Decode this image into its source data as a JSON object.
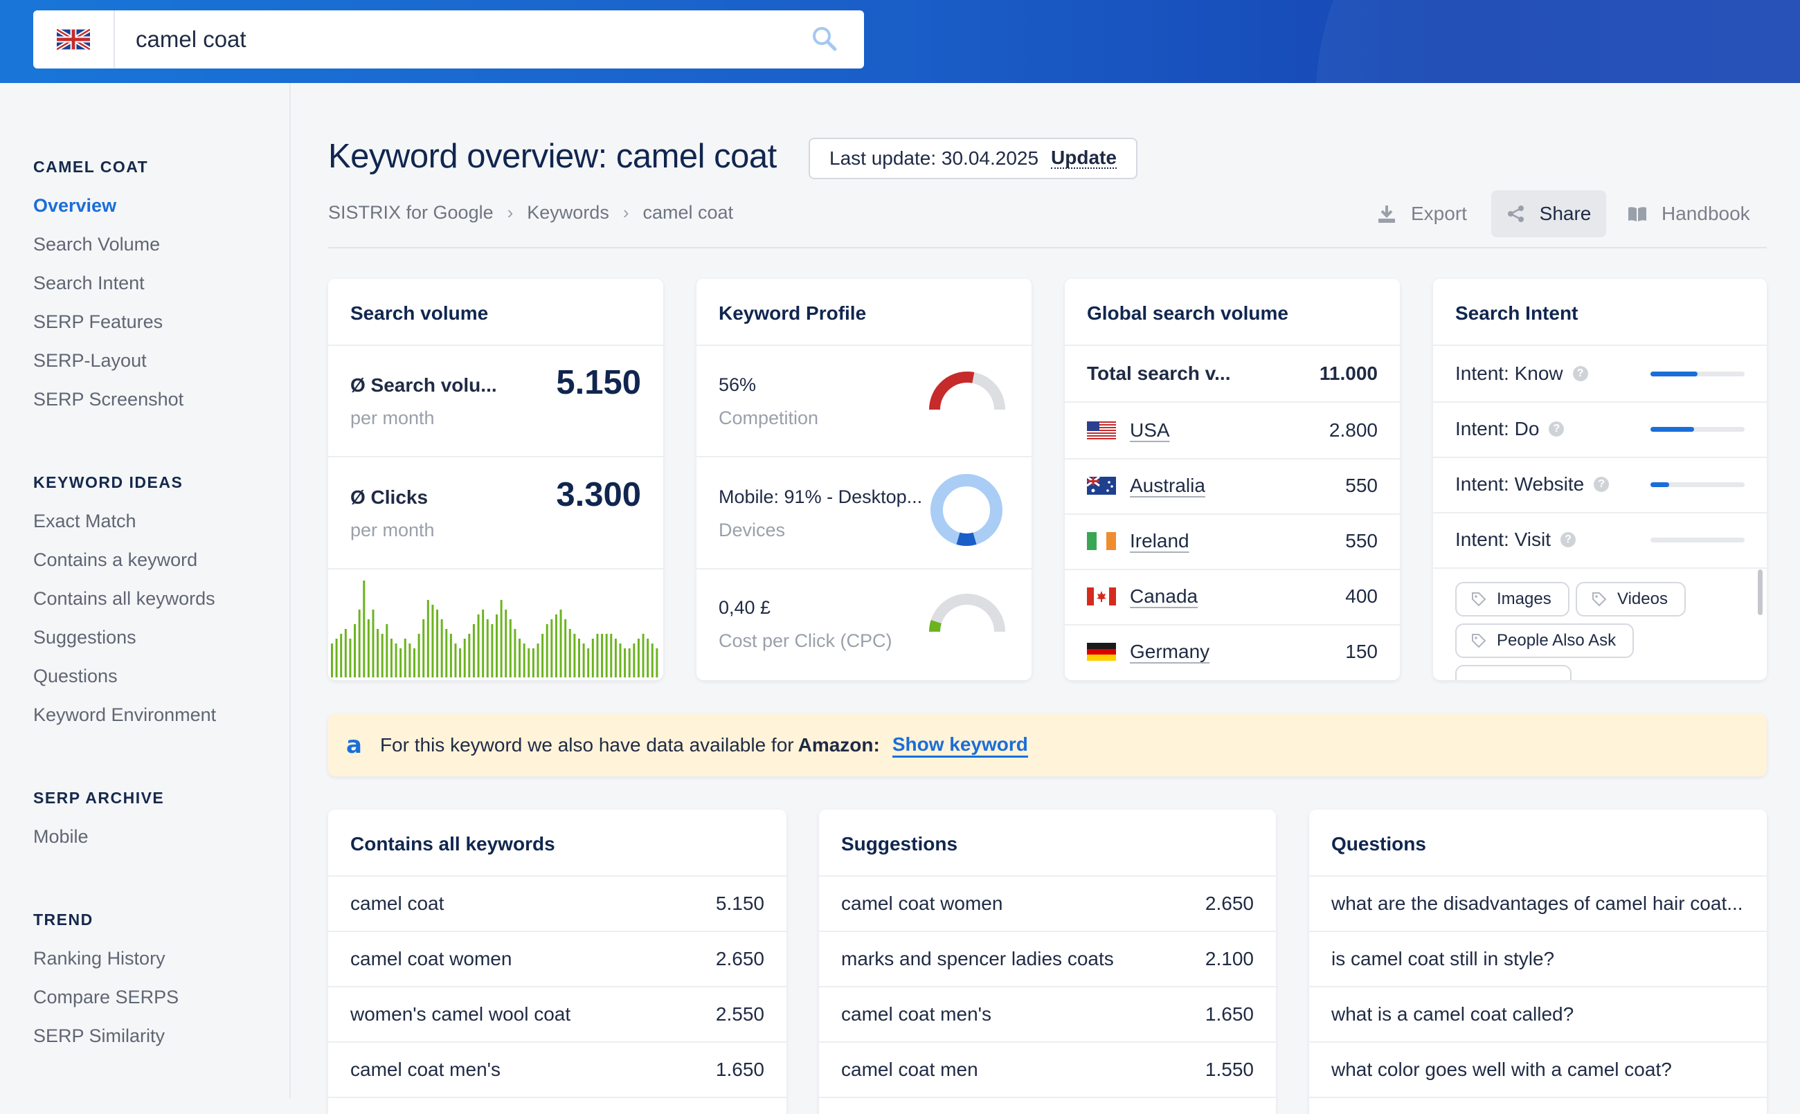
{
  "search": {
    "query": "camel coat",
    "flag": "uk-flag-icon"
  },
  "sidebar": {
    "sections": [
      {
        "title": "CAMEL COAT",
        "items": [
          "Overview",
          "Search Volume",
          "Search Intent",
          "SERP Features",
          "SERP-Layout",
          "SERP Screenshot"
        ]
      },
      {
        "title": "KEYWORD IDEAS",
        "items": [
          "Exact Match",
          "Contains a keyword",
          "Contains all keywords",
          "Suggestions",
          "Questions",
          "Keyword Environment"
        ]
      },
      {
        "title": "SERP ARCHIVE",
        "items": [
          "Mobile"
        ]
      },
      {
        "title": "TREND",
        "items": [
          "Ranking History",
          "Compare SERPS",
          "SERP Similarity"
        ]
      }
    ],
    "active": "Overview"
  },
  "header": {
    "title": "Keyword overview: camel coat",
    "last_update_label": "Last update: 30.04.2025",
    "update_button": "Update",
    "breadcrumb": [
      "SISTRIX for Google",
      "Keywords",
      "camel coat"
    ],
    "actions": {
      "export": "Export",
      "share": "Share",
      "handbook": "Handbook"
    }
  },
  "search_volume": {
    "title": "Search volume",
    "rows": [
      {
        "label": "Ø Search volu...",
        "sub": "per month",
        "value": "5.150"
      },
      {
        "label": "Ø Clicks",
        "sub": "per month",
        "value": "3.300"
      }
    ],
    "trend_color": "#6cb31f"
  },
  "keyword_profile": {
    "title": "Keyword Profile",
    "competition": {
      "value": "56%",
      "label": "Competition",
      "fraction": 0.56,
      "color": "#c62a2a"
    },
    "devices": {
      "value": "Mobile: 91% - Desktop...",
      "label": "Devices",
      "mobile": 0.91,
      "color_mobile": "#a9cdf5",
      "color_desktop": "#1a5ec8"
    },
    "cpc": {
      "value": "0,40 £",
      "label": "Cost per Click (CPC)",
      "fraction": 0.1,
      "color": "#6cb31f"
    }
  },
  "global_volume": {
    "title": "Global search volume",
    "total_label": "Total search v...",
    "total_value": "11.000",
    "countries": [
      {
        "name": "USA",
        "value": "2.800",
        "flag": "us-flag-icon"
      },
      {
        "name": "Australia",
        "value": "550",
        "flag": "au-flag-icon"
      },
      {
        "name": "Ireland",
        "value": "550",
        "flag": "ie-flag-icon"
      },
      {
        "name": "Canada",
        "value": "400",
        "flag": "ca-flag-icon"
      },
      {
        "name": "Germany",
        "value": "150",
        "flag": "de-flag-icon"
      }
    ]
  },
  "search_intent": {
    "title": "Search Intent",
    "intents": [
      {
        "label": "Intent: Know",
        "level": 0.5
      },
      {
        "label": "Intent: Do",
        "level": 0.46
      },
      {
        "label": "Intent: Website",
        "level": 0.2
      },
      {
        "label": "Intent: Visit",
        "level": 0
      }
    ],
    "tags": [
      "Images",
      "Videos",
      "People Also Ask"
    ]
  },
  "amazon": {
    "text": "For this keyword we also have data available for",
    "bold": "Amazon:",
    "link": "Show keyword"
  },
  "contains_all": {
    "title": "Contains all keywords",
    "rows": [
      {
        "kw": "camel coat",
        "val": "5.150"
      },
      {
        "kw": "camel coat women",
        "val": "2.650"
      },
      {
        "kw": "women's camel wool coat",
        "val": "2.550"
      },
      {
        "kw": "camel coat men's",
        "val": "1.650"
      }
    ]
  },
  "suggestions": {
    "title": "Suggestions",
    "rows": [
      {
        "kw": "camel coat women",
        "val": "2.650"
      },
      {
        "kw": "marks and spencer ladies coats",
        "val": "2.100"
      },
      {
        "kw": "camel coat men's",
        "val": "1.650"
      },
      {
        "kw": "camel coat men",
        "val": "1.550"
      }
    ]
  },
  "questions": {
    "title": "Questions",
    "rows": [
      "what are the disadvantages of camel hair coat...",
      "is camel coat still in style?",
      "what is a camel coat called?",
      "what color goes well with a camel coat?"
    ]
  }
}
